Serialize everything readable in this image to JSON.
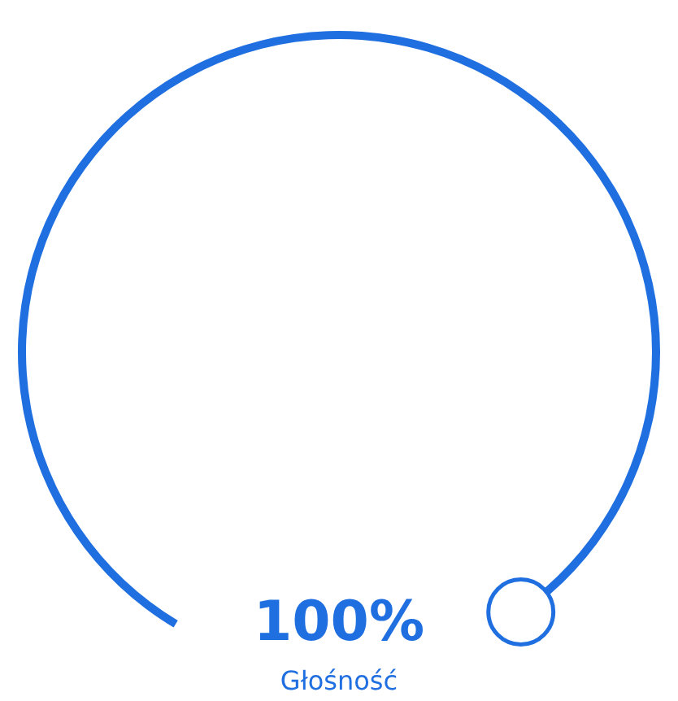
{
  "chart_data": {
    "type": "pie",
    "categories": [
      "Głośność"
    ],
    "values": [
      100
    ],
    "colors": [
      "#1f6fe0"
    ],
    "value_labels": [
      "100%"
    ]
  }
}
